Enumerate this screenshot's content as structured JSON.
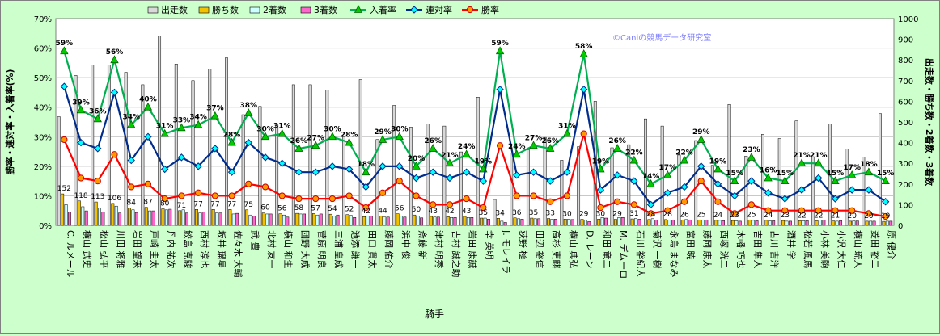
{
  "chart_data": {
    "type": "bar",
    "title": "",
    "xlabel": "騎手",
    "ylabel_left": "勝率・連対率・入着率(%)",
    "ylabel_right": "出走数・勝ち数・2着数・3着数",
    "watermark": "©Caniの競馬データ研究室",
    "ylim_left": [
      0,
      70
    ],
    "ylim_right": [
      0,
      1000
    ],
    "left_ticks": [
      "0%",
      "10%",
      "20%",
      "30%",
      "40%",
      "50%",
      "60%",
      "70%"
    ],
    "right_ticks": [
      "0",
      "100",
      "200",
      "300",
      "400",
      "500",
      "600",
      "700",
      "800",
      "900",
      "1000"
    ],
    "legend_position": "top",
    "grid": true,
    "categories": [
      "C. ルメール",
      "横山 武史",
      "松山 弘平",
      "川田 将雅",
      "岩田 望来",
      "戸崎 圭太",
      "丹内 祐次",
      "鮫島 克駿",
      "西村 淳也",
      "坂井 瑠星",
      "佐々木 大輔",
      "武 豊",
      "北村 友一",
      "横山 和生",
      "団野 大成",
      "菅原 明良",
      "三浦 皇成",
      "池添 謙一",
      "田口 貫太",
      "藤岡 佑介",
      "浜中 俊",
      "斎藤 新",
      "津村 明秀",
      "吉村 誠之助",
      "岩田 康誠",
      "幸 英明",
      "J. モレイラ",
      "荻野 極",
      "田辺 裕信",
      "高杉 吏麒",
      "横山 典弘",
      "D. レーン",
      "和田 竜二",
      "M. デムーロ",
      "石川 裕紀人",
      "菊沢 一樹",
      "永島 まなみ",
      "富田 暁",
      "藤岡 康太",
      "西塚 洸二",
      "木幡 巧也",
      "吉田 隼人",
      "古川 吉洋",
      "酒井 学",
      "松若 風馬",
      "小林 美駒",
      "小沢 大仁",
      "横山 琉人",
      "菱田 裕二",
      "原 優介"
    ],
    "series": [
      {
        "name": "出走数",
        "axis": "right",
        "color": "#d9d9d9",
        "values": [
          525,
          725,
          775,
          775,
          740,
          680,
          915,
          780,
          700,
          755,
          810,
          535,
          575,
          485,
          680,
          680,
          655,
          430,
          705,
          415,
          580,
          475,
          490,
          480,
          355,
          620,
          125,
          350,
          365,
          425,
          315,
          380,
          600,
          375,
          390,
          515,
          480,
          340,
          410,
          290,
          585,
          335,
          440,
          420,
          505,
          330,
          490,
          370,
          330,
          540
        ]
      },
      {
        "name": "勝ち数",
        "axis": "right",
        "color": "#f2c200",
        "values": [
          152,
          118,
          113,
          106,
          84,
          87,
          80,
          71,
          77,
          77,
          77,
          75,
          60,
          56,
          58,
          57,
          54,
          52,
          42,
          44,
          56,
          50,
          43,
          42,
          43,
          35,
          34,
          36,
          35,
          33,
          30,
          29,
          30,
          29,
          31,
          28,
          28,
          26,
          25,
          24,
          23,
          25,
          24,
          23,
          22,
          22,
          21,
          20,
          20,
          19
        ]
      },
      {
        "name": "2着数",
        "axis": "right",
        "color": "#ccffff",
        "values": [
          100,
          90,
          85,
          93,
          75,
          70,
          75,
          75,
          60,
          60,
          55,
          50,
          55,
          50,
          55,
          50,
          45,
          48,
          45,
          40,
          45,
          45,
          40,
          38,
          38,
          35,
          20,
          32,
          32,
          30,
          30,
          25,
          38,
          38,
          33,
          32,
          26,
          28,
          25,
          24,
          22,
          24,
          22,
          20,
          22,
          26,
          20,
          21,
          20,
          20
        ]
      },
      {
        "name": "3着数",
        "axis": "right",
        "color": "#ff66cc",
        "values": [
          65,
          70,
          65,
          60,
          62,
          70,
          78,
          60,
          65,
          60,
          58,
          45,
          55,
          40,
          55,
          55,
          50,
          38,
          45,
          40,
          40,
          36,
          40,
          38,
          38,
          30,
          14,
          30,
          32,
          30,
          28,
          18,
          35,
          38,
          30,
          25,
          26,
          25,
          25,
          22,
          20,
          22,
          22,
          20,
          22,
          25,
          22,
          21,
          20,
          20
        ]
      },
      {
        "name": "入着率",
        "axis": "left",
        "color": "#00b050",
        "values": [
          59,
          39,
          36,
          56,
          34,
          40,
          31,
          33,
          34,
          37,
          28,
          38,
          30,
          31,
          26,
          27,
          30,
          28,
          18,
          29,
          30,
          20,
          26,
          21,
          24,
          19,
          59,
          24,
          27,
          26,
          31,
          58,
          19,
          26,
          22,
          14,
          17,
          22,
          29,
          19,
          15,
          23,
          16,
          15,
          21,
          21,
          15,
          17,
          18,
          15
        ]
      },
      {
        "name": "連対率",
        "axis": "left",
        "color": "#002c8c",
        "values": [
          47,
          28,
          26,
          45,
          22,
          30,
          19,
          23,
          20,
          26,
          18,
          28,
          23,
          21,
          18,
          18,
          20,
          19,
          13,
          20,
          20,
          16,
          18,
          16,
          18,
          15,
          46,
          17,
          18,
          15,
          18,
          46,
          12,
          17,
          15,
          7,
          11,
          13,
          20,
          14,
          10,
          15,
          11,
          9,
          12,
          16,
          9,
          12,
          12,
          8
        ]
      },
      {
        "name": "勝率",
        "axis": "left",
        "color": "#ff0000",
        "values": [
          29,
          16,
          15,
          24,
          13,
          14,
          9,
          10,
          11,
          10,
          10,
          14,
          13,
          10,
          9,
          9,
          9,
          10,
          6,
          11,
          15,
          10,
          7,
          7,
          9,
          6,
          27,
          10,
          10,
          8,
          10,
          31,
          6,
          8,
          7,
          4,
          5,
          8,
          15,
          8,
          4,
          7,
          5,
          5,
          5,
          5,
          5,
          5,
          4,
          3
        ]
      }
    ],
    "percent_labels": [
      "59%",
      "39%",
      "36%",
      "56%",
      "34%",
      "40%",
      "31%",
      "33%",
      "34%",
      "37%",
      "28%",
      "38%",
      "30%",
      "31%",
      "26%",
      "27%",
      "30%",
      "28%",
      "18%",
      "29%",
      "30%",
      "20%",
      "26%",
      "21%",
      "24%",
      "19%",
      "59%",
      "24%",
      "27%",
      "26%",
      "31%",
      "58%",
      "19%",
      "26%",
      "22%",
      "14%",
      "17%",
      "22%",
      "29%",
      "19%",
      "15%",
      "23%",
      "16%",
      "15%",
      "21%",
      "21%",
      "15%",
      "17%",
      "18%",
      "15%"
    ],
    "count_labels": [
      "152",
      "118",
      "113",
      "106",
      "84",
      "87",
      "80",
      "71",
      "77",
      "77",
      "77",
      "75",
      "60",
      "56",
      "58",
      "57",
      "54",
      "52",
      "42",
      "44",
      "56",
      "50",
      "43",
      "42",
      "43",
      "35",
      "34",
      "36",
      "35",
      "33",
      "30",
      "29",
      "30",
      "29",
      "31",
      "28",
      "28",
      "26",
      "25",
      "24",
      "23",
      "25",
      "24",
      "23",
      "22",
      "22",
      "21",
      "20",
      "20",
      "19"
    ]
  }
}
